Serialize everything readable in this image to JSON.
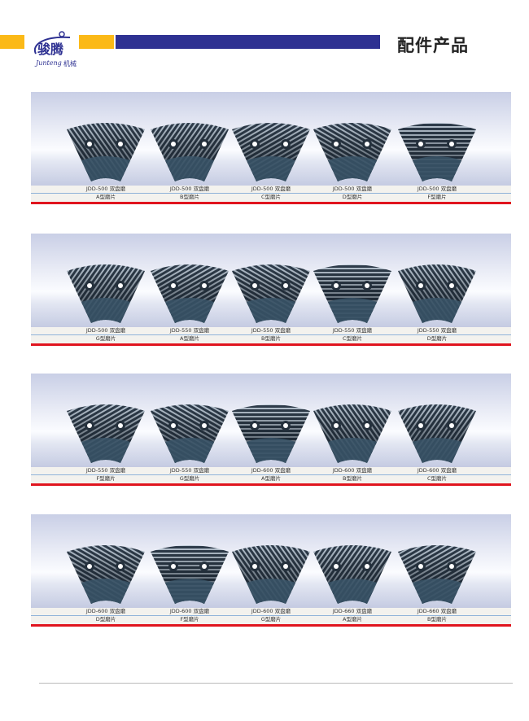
{
  "header": {
    "logo_text": "骏腾",
    "logo_sub": "Junteng 机械",
    "title": "配件产品",
    "colors": {
      "yellow": "#fbb917",
      "blue": "#2e3192",
      "red": "#e0141e"
    }
  },
  "panels": [
    {
      "items": [
        {
          "model": "JDD-500 双盘磨",
          "type": "A型磨片"
        },
        {
          "model": "JDD-500 双盘磨",
          "type": "B型磨片"
        },
        {
          "model": "JDD-500 双盘磨",
          "type": "C型磨片"
        },
        {
          "model": "JDD-500 双盘磨",
          "type": "D型磨片"
        },
        {
          "model": "JDD-500 双盘磨",
          "type": "F型磨片"
        }
      ]
    },
    {
      "items": [
        {
          "model": "JDD-500 双盘磨",
          "type": "G型磨片"
        },
        {
          "model": "JDD-550 双盘磨",
          "type": "A型磨片"
        },
        {
          "model": "JDD-550 双盘磨",
          "type": "B型磨片"
        },
        {
          "model": "JDD-550 双盘磨",
          "type": "C型磨片"
        },
        {
          "model": "JDD-550 双盘磨",
          "type": "D型磨片"
        }
      ]
    },
    {
      "items": [
        {
          "model": "JDD-550 双盘磨",
          "type": "F型磨片"
        },
        {
          "model": "JDD-550 双盘磨",
          "type": "G型磨片"
        },
        {
          "model": "JDD-600 双盘磨",
          "type": "A型磨片"
        },
        {
          "model": "JDD-600 双盘磨",
          "type": "B型磨片"
        },
        {
          "model": "JDD-600 双盘磨",
          "type": "C型磨片"
        }
      ]
    },
    {
      "items": [
        {
          "model": "JDD-600 双盘磨",
          "type": "D型磨片"
        },
        {
          "model": "JDD-600 双盘磨",
          "type": "F型磨片"
        },
        {
          "model": "JDD-600 双盘磨",
          "type": "G型磨片"
        },
        {
          "model": "JDD-660 双盘磨",
          "type": "A型磨片"
        },
        {
          "model": "JDD-660 双盘磨",
          "type": "B型磨片"
        }
      ]
    }
  ]
}
